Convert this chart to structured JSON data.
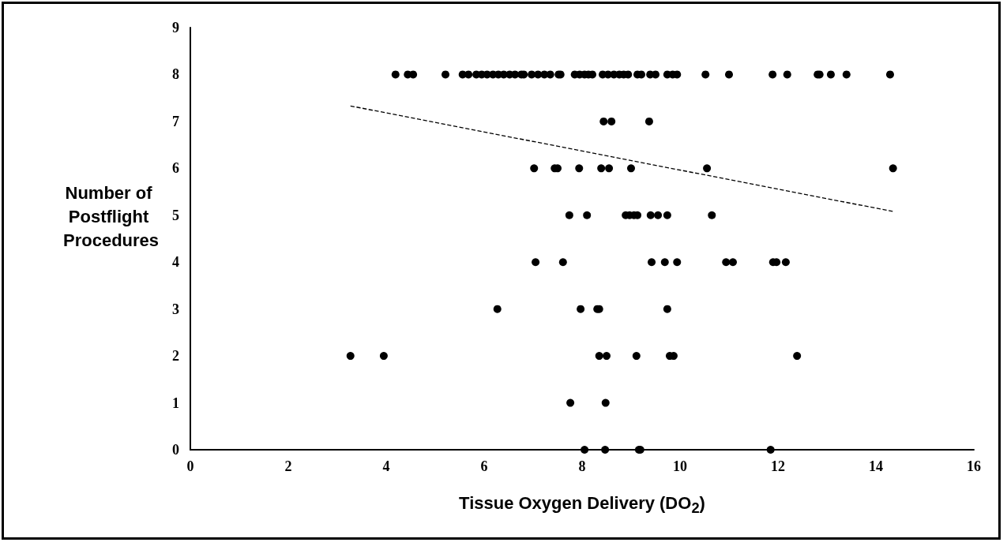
{
  "chart_data": {
    "type": "scatter",
    "xlabel": "Tissue Oxygen Delivery (DO$_{2}$)",
    "ylabel": "Number of Postflight Procedures",
    "xlim": [
      0,
      16
    ],
    "xticks": [
      0,
      2,
      4,
      6,
      8,
      10,
      12,
      14,
      16
    ],
    "ylim": [
      0,
      9
    ],
    "yticks": [
      0,
      1,
      2,
      3,
      4,
      5,
      6,
      7,
      8,
      9
    ],
    "grid": false,
    "marker": "circle",
    "series": [
      {
        "color": "#000000",
        "x": [
          4.19,
          4.44,
          4.55,
          5.21,
          5.56,
          5.68,
          5.84,
          5.95,
          6.06,
          6.18,
          6.29,
          6.4,
          6.52,
          6.63,
          6.76,
          6.81,
          6.97,
          7.1,
          7.23,
          7.35,
          7.52,
          7.56,
          7.85,
          7.95,
          8.05,
          8.13,
          8.21,
          8.42,
          8.53,
          8.65,
          8.76,
          8.85,
          8.94,
          9.13,
          9.21,
          9.39,
          9.5,
          9.74,
          9.85,
          9.94,
          10.52,
          11.0,
          11.89,
          12.19,
          12.81,
          12.85,
          13.08,
          13.4,
          14.29,
          8.44,
          8.6,
          9.37,
          7.02,
          7.44,
          7.5,
          7.94,
          8.39,
          8.55,
          9.0,
          10.55,
          14.35,
          7.74,
          8.1,
          8.89,
          8.97,
          9.06,
          9.13,
          9.4,
          9.55,
          9.74,
          10.65,
          7.05,
          7.61,
          9.42,
          9.69,
          9.94,
          10.94,
          11.08,
          11.9,
          11.97,
          12.16,
          6.27,
          7.97,
          8.31,
          8.35,
          9.74,
          3.27,
          3.95,
          8.35,
          8.5,
          9.11,
          9.79,
          9.87,
          12.39,
          7.76,
          8.48,
          8.05,
          8.47,
          9.16,
          9.19,
          11.85
        ],
        "values": [
          8,
          8,
          8,
          8,
          8,
          8,
          8,
          8,
          8,
          8,
          8,
          8,
          8,
          8,
          8,
          8,
          8,
          8,
          8,
          8,
          8,
          8,
          8,
          8,
          8,
          8,
          8,
          8,
          8,
          8,
          8,
          8,
          8,
          8,
          8,
          8,
          8,
          8,
          8,
          8,
          8,
          8,
          8,
          8,
          8,
          8,
          8,
          8,
          8,
          7,
          7,
          7,
          6,
          6,
          6,
          6,
          6,
          6,
          6,
          6,
          6,
          5,
          5,
          5,
          5,
          5,
          5,
          5,
          5,
          5,
          5,
          4,
          4,
          4,
          4,
          4,
          4,
          4,
          4,
          4,
          4,
          3,
          3,
          3,
          3,
          3,
          2,
          2,
          2,
          2,
          2,
          2,
          2,
          2,
          1,
          1,
          0,
          0,
          0,
          0,
          0
        ]
      },
      {
        "type": "line",
        "color": "#000000",
        "line_style": "dashed",
        "marker": "none",
        "x": [
          3.27,
          14.35
        ],
        "values": [
          7.33,
          5.08
        ]
      }
    ]
  }
}
